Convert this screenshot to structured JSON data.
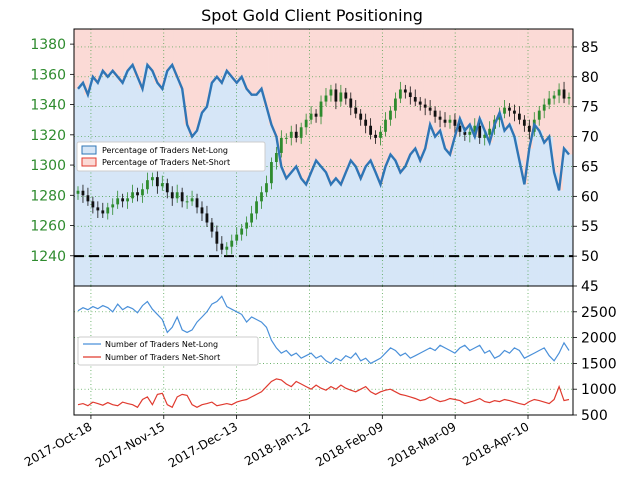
{
  "chart_data": {
    "type": "line",
    "title": "Spot Gold Client Positioning",
    "x_ticks": [
      "2017-Oct-18",
      "2017-Nov-15",
      "2017-Dec-13",
      "2018-Jan-12",
      "2018-Feb-09",
      "2018-Mar-09",
      "2018-Apr-10"
    ],
    "colors": {
      "price_axis": "#2e8b2e",
      "long_line": "#2f75b5",
      "long_fill": "#d6e6f7",
      "short_fill": "#fbdad6",
      "short_line": "#e03a2f",
      "up_candle": "#2e8b2e",
      "down_candle": "#111111",
      "grid": "#3c9a3c"
    },
    "upper_panel": {
      "price_ylim": [
        1220,
        1390
      ],
      "price_ticks": [
        1240,
        1260,
        1280,
        1300,
        1320,
        1340,
        1360,
        1380
      ],
      "pct_ylim": [
        45,
        88
      ],
      "pct_ticks": [
        45,
        50,
        55,
        60,
        65,
        70,
        75,
        80,
        85
      ],
      "reference_level_pct": 50,
      "legend_position": "left",
      "legend": [
        "Percentage of Traders Net-Long",
        "Percentage of Traders Net-Short"
      ],
      "percent_net_long": [
        78,
        79,
        77,
        80,
        79,
        81,
        80,
        81,
        80,
        79,
        81,
        82,
        80,
        78,
        82,
        81,
        79,
        78,
        81,
        82,
        80,
        78,
        72,
        70,
        71,
        74,
        75,
        79,
        80,
        79,
        81,
        80,
        79,
        80,
        78,
        77,
        77,
        78,
        75,
        72,
        70,
        65,
        63,
        64,
        65,
        63,
        62,
        64,
        66,
        65,
        64,
        62,
        63,
        62,
        64,
        66,
        65,
        63,
        65,
        66,
        64,
        62,
        65,
        67,
        66,
        64,
        65,
        67,
        68,
        66,
        68,
        72,
        70,
        71,
        68,
        67,
        70,
        73,
        71,
        72,
        70,
        73,
        71,
        69,
        72,
        74,
        71,
        72,
        70,
        66,
        62,
        68,
        72,
        71,
        69,
        70,
        64,
        61,
        68,
        67
      ],
      "price_close": [
        1283,
        1280,
        1276,
        1272,
        1270,
        1268,
        1272,
        1274,
        1278,
        1276,
        1278,
        1282,
        1280,
        1284,
        1290,
        1292,
        1286,
        1288,
        1282,
        1278,
        1282,
        1276,
        1276,
        1278,
        1272,
        1268,
        1262,
        1256,
        1248,
        1244,
        1246,
        1250,
        1254,
        1258,
        1262,
        1268,
        1276,
        1282,
        1288,
        1302,
        1308,
        1318,
        1318,
        1322,
        1318,
        1325,
        1330,
        1334,
        1332,
        1342,
        1346,
        1350,
        1342,
        1348,
        1344,
        1338,
        1334,
        1330,
        1326,
        1320,
        1318,
        1322,
        1330,
        1336,
        1344,
        1350,
        1348,
        1345,
        1342,
        1340,
        1338,
        1336,
        1332,
        1330,
        1328,
        1330,
        1326,
        1322,
        1320,
        1322,
        1326,
        1318,
        1320,
        1324,
        1330,
        1334,
        1338,
        1336,
        1334,
        1330,
        1326,
        1322,
        1330,
        1336,
        1340,
        1344,
        1346,
        1350,
        1344,
        1345
      ]
    },
    "lower_panel": {
      "ylim": [
        500,
        3000
      ],
      "y_ticks": [
        500,
        1000,
        1500,
        2000,
        2500
      ],
      "legend": [
        "Number of Traders Net-Long",
        "Number of Traders Net-Short"
      ],
      "traders_net_long": [
        2520,
        2580,
        2540,
        2600,
        2560,
        2620,
        2580,
        2500,
        2650,
        2540,
        2600,
        2560,
        2480,
        2620,
        2700,
        2550,
        2450,
        2350,
        2100,
        2200,
        2400,
        2150,
        2100,
        2150,
        2300,
        2400,
        2500,
        2650,
        2700,
        2800,
        2600,
        2550,
        2500,
        2450,
        2300,
        2400,
        2350,
        2300,
        2200,
        1950,
        1800,
        1700,
        1750,
        1650,
        1700,
        1600,
        1650,
        1700,
        1600,
        1650,
        1550,
        1500,
        1600,
        1550,
        1650,
        1600,
        1700,
        1550,
        1600,
        1500,
        1550,
        1600,
        1700,
        1800,
        1750,
        1650,
        1700,
        1600,
        1650,
        1700,
        1750,
        1800,
        1750,
        1850,
        1800,
        1750,
        1700,
        1800,
        1850,
        1750,
        1800,
        1850,
        1700,
        1750,
        1600,
        1650,
        1750,
        1700,
        1800,
        1750,
        1600,
        1650,
        1700,
        1750,
        1800,
        1650,
        1550,
        1700,
        1900,
        1750
      ],
      "traders_net_short": [
        700,
        720,
        680,
        750,
        720,
        690,
        740,
        700,
        680,
        750,
        720,
        700,
        650,
        800,
        850,
        700,
        900,
        920,
        700,
        650,
        850,
        900,
        880,
        700,
        650,
        700,
        720,
        750,
        680,
        700,
        720,
        700,
        750,
        780,
        800,
        850,
        900,
        950,
        1050,
        1150,
        1200,
        1180,
        1100,
        1050,
        1150,
        1100,
        1050,
        1000,
        1080,
        1020,
        980,
        1050,
        1000,
        1080,
        1020,
        980,
        950,
        1000,
        1050,
        950,
        900,
        950,
        980,
        1000,
        950,
        900,
        880,
        850,
        820,
        780,
        800,
        850,
        800,
        760,
        780,
        820,
        800,
        780,
        720,
        750,
        780,
        820,
        760,
        740,
        780,
        760,
        800,
        780,
        750,
        720,
        700,
        760,
        800,
        780,
        750,
        720,
        800,
        1050,
        780,
        800
      ]
    }
  }
}
